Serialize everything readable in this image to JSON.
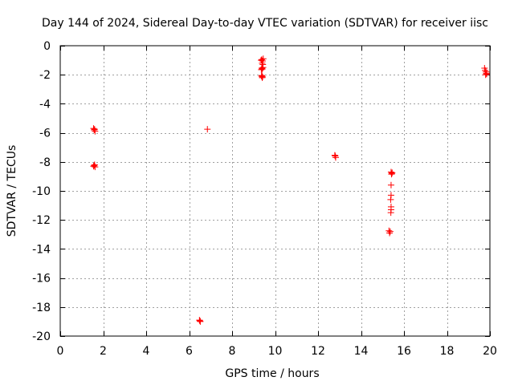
{
  "chart_data": {
    "type": "scatter",
    "title": "Day 144 of 2024, Sidereal Day-to-day VTEC variation (SDTVAR) for receiver iisc",
    "xlabel": "GPS time / hours",
    "ylabel": "SDTVAR / TECUs",
    "xlim": [
      0,
      20
    ],
    "ylim": [
      -20,
      0
    ],
    "xticks": [
      0,
      2,
      4,
      6,
      8,
      10,
      12,
      14,
      16,
      18,
      20
    ],
    "yticks": [
      0,
      -2,
      -4,
      -6,
      -8,
      -10,
      -12,
      -14,
      -16,
      -18,
      -20
    ],
    "grid": true,
    "marker": "+",
    "color": "#ff0000",
    "series": [
      {
        "name": "SDTVAR",
        "x": [
          1.55,
          1.58,
          1.62,
          1.6,
          1.55,
          1.58,
          1.62,
          1.6,
          6.48,
          6.52,
          6.5,
          6.85,
          9.35,
          9.38,
          9.42,
          9.45,
          9.4,
          9.43,
          9.38,
          9.36,
          9.41,
          9.44,
          9.37,
          9.4,
          9.42,
          9.39,
          12.78,
          12.82,
          12.8,
          15.3,
          15.33,
          15.36,
          15.4,
          15.42,
          15.4,
          15.4,
          15.38,
          15.4,
          15.39,
          15.4,
          15.43,
          15.45,
          19.75,
          19.78,
          19.82,
          19.85,
          19.8,
          19.83
        ],
        "y": [
          -5.7,
          -5.8,
          -5.9,
          -5.75,
          -8.3,
          -8.25,
          -8.35,
          -8.2,
          -18.9,
          -19.0,
          -18.95,
          -5.75,
          -1.0,
          -0.95,
          -1.05,
          -0.9,
          -1.2,
          -1.3,
          -1.55,
          -1.65,
          -1.6,
          -1.5,
          -2.1,
          -2.2,
          -2.15,
          -2.05,
          -7.55,
          -7.7,
          -7.6,
          -12.75,
          -12.9,
          -12.8,
          -8.7,
          -8.85,
          -9.6,
          -10.3,
          -10.6,
          -11.1,
          -11.5,
          -11.3,
          -8.8,
          -8.75,
          -1.55,
          -1.7,
          -1.8,
          -1.95,
          -2.0,
          -1.9
        ]
      }
    ]
  }
}
